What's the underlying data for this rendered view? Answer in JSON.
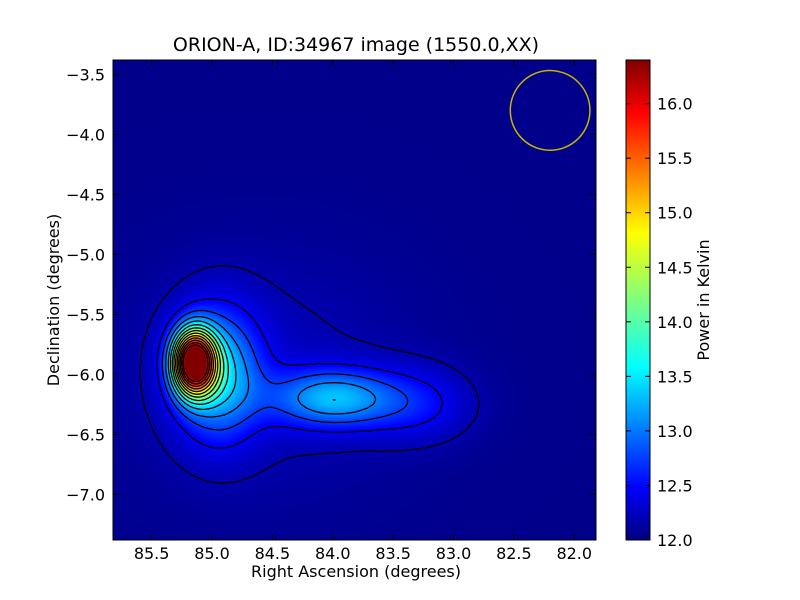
{
  "chart_data": {
    "type": "heatmap",
    "title": "ORION-A, ID:34967 image (1550.0,XX)",
    "xlabel": "Right Ascension (degrees)",
    "ylabel": "Declination (degrees)",
    "colorbar_label": "Power in Kelvin",
    "colormap": "jet",
    "x_reversed": true,
    "xlim": [
      85.82,
      81.82
    ],
    "ylim": [
      -7.38,
      -3.38
    ],
    "xticks": [
      85.5,
      85.0,
      84.5,
      84.0,
      83.5,
      83.0,
      82.5,
      82.0
    ],
    "xtick_labels": [
      "85.5",
      "85.0",
      "84.5",
      "84.0",
      "83.5",
      "83.0",
      "82.5",
      "82.0"
    ],
    "yticks": [
      -3.5,
      -4.0,
      -4.5,
      -5.0,
      -5.5,
      -6.0,
      -6.5,
      -7.0
    ],
    "ytick_labels": [
      "−3.5",
      "−4.0",
      "−4.5",
      "−5.0",
      "−5.5",
      "−6.0",
      "−6.5",
      "−7.0"
    ],
    "color_range": [
      12.0,
      16.4
    ],
    "colorbar_ticks": [
      12.0,
      12.5,
      13.0,
      13.5,
      14.0,
      14.5,
      15.0,
      15.5,
      16.0
    ],
    "colorbar_tick_labels": [
      "12.0",
      "12.5",
      "13.0",
      "13.5",
      "14.0",
      "14.5",
      "15.0",
      "15.5",
      "16.0"
    ],
    "peak": {
      "ra": 85.15,
      "dec": -5.9,
      "value": 16.4
    },
    "secondary_peak": {
      "ra": 84.0,
      "dec": -6.2,
      "value": 13.3
    },
    "contour_color": "#000000",
    "beam_circle": {
      "ra": 82.2,
      "dec": -3.8,
      "radius_deg": 0.33,
      "color": "#c8b400"
    }
  }
}
